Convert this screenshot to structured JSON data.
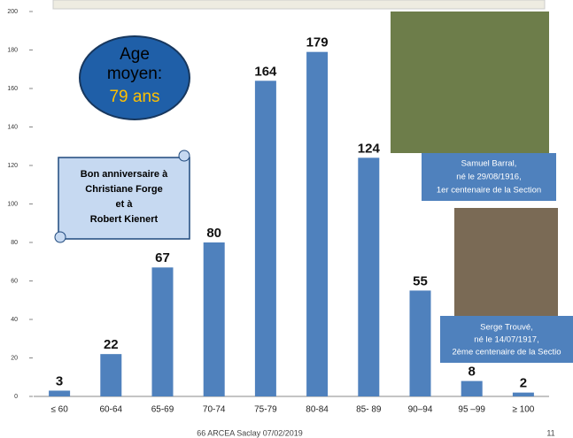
{
  "chart_data": {
    "type": "bar",
    "categories": [
      "≤ 60",
      "60-64",
      "65-69",
      "70-74",
      "75-79",
      "80-84",
      "85- 89",
      "90–94",
      "95 –99",
      "≥ 100"
    ],
    "values": [
      3,
      22,
      67,
      80,
      164,
      179,
      124,
      55,
      8,
      2
    ],
    "color": "#4f81bd",
    "ylim": [
      0,
      200
    ],
    "yticks": [
      0,
      20,
      40,
      60,
      80,
      100,
      120,
      140,
      160,
      180,
      200
    ],
    "average_label": [
      "Age",
      "moyen:"
    ],
    "average_value": "79 ans",
    "birthday_note": [
      "Bon anniversaire à",
      "Christiane Forge",
      "et à",
      "Robert Kienert"
    ],
    "caption_1": [
      "Samuel Barral,",
      "né le 29/08/1916,",
      "1er centenaire de la Section"
    ],
    "caption_2": [
      "Serge Trouvé,",
      "né le 14/07/1917,",
      "2ème centenaire de la Sectio"
    ],
    "footer": "66 ARCEA Saclay  07/02/2019",
    "page_number": "11"
  }
}
